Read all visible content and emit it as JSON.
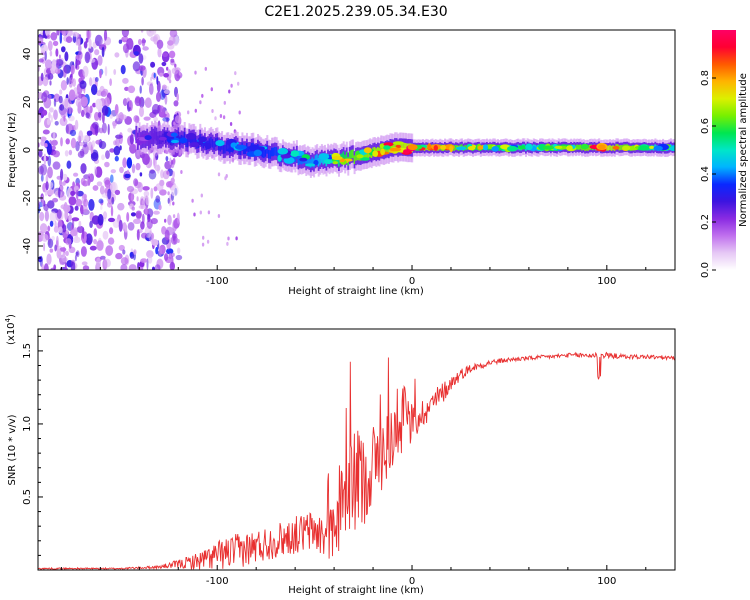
{
  "title": "C2E1.2025.239.05.34.E30",
  "colors": {
    "snr_line": "#e83030",
    "colormap": [
      "#ffffff",
      "#e6c8f5",
      "#c070ee",
      "#8a2be2",
      "#3c14e0",
      "#0a28ff",
      "#00b4ff",
      "#00e6c8",
      "#00e650",
      "#78f000",
      "#dcf000",
      "#ffb400",
      "#ff5a00",
      "#ff0032",
      "#ff0064"
    ]
  },
  "chart_data": [
    {
      "type": "heatmap",
      "title": "C2E1.2025.239.05.34.E30",
      "xlabel": "Height of straight line (km)",
      "ylabel": "Frequency (Hz)",
      "xlim": [
        -192,
        135
      ],
      "ylim": [
        -50,
        50
      ],
      "xticks": [
        -100,
        0,
        100
      ],
      "yticks": [
        -40,
        -20,
        0,
        20,
        40
      ],
      "colorbar": {
        "label": "Normalized spectral amplitude",
        "range": [
          0.0,
          1.0
        ],
        "ticks": [
          "0.0",
          "0.2",
          "0.4",
          "0.6",
          "0.8"
        ],
        "tick_values": [
          0.0,
          0.2,
          0.4,
          0.6,
          0.8
        ]
      },
      "ridge": {
        "description": "frequency center of energy ridge vs height",
        "x": [
          -140,
          -120,
          -100,
          -80,
          -60,
          -50,
          -40,
          -30,
          -20,
          -10,
          0,
          20,
          60,
          100,
          135
        ],
        "y": [
          5,
          5,
          2,
          0,
          -3,
          -5,
          -4,
          -3,
          -1,
          1,
          1,
          1,
          1,
          1,
          1
        ],
        "peak_amplitude": [
          0.3,
          0.45,
          0.45,
          0.5,
          0.55,
          0.6,
          0.75,
          0.9,
          0.95,
          0.95,
          1.0,
          0.9,
          0.7,
          1.0,
          0.6
        ]
      },
      "noise_region": {
        "x": [
          -192,
          -125
        ],
        "amplitude_range": [
          0.1,
          0.3
        ]
      }
    },
    {
      "type": "line",
      "xlabel": "Height of straight line (km)",
      "ylabel": "SNR (10 * v/v)",
      "multiplier_label": "(x10",
      "multiplier_exponent": "4",
      "multiplier_close": ")",
      "xlim": [
        -192,
        135
      ],
      "ylim": [
        0,
        1.65
      ],
      "xticks": [
        -100,
        0,
        100
      ],
      "yticks": [
        0.5,
        1.0,
        1.5
      ],
      "ytick_labels": [
        "0.5",
        "1.0",
        "1.5"
      ],
      "series": [
        {
          "name": "SNR",
          "x": [
            -192,
            -150,
            -130,
            -120,
            -110,
            -100,
            -90,
            -80,
            -70,
            -60,
            -50,
            -45,
            -40,
            -35,
            -30,
            -25,
            -20,
            -15,
            -10,
            -5,
            0,
            5,
            10,
            15,
            20,
            25,
            30,
            40,
            50,
            60,
            70,
            80,
            90,
            100,
            110,
            120,
            135
          ],
          "values": [
            0.01,
            0.01,
            0.02,
            0.04,
            0.06,
            0.1,
            0.13,
            0.16,
            0.2,
            0.24,
            0.27,
            0.22,
            0.28,
            0.45,
            0.6,
            0.62,
            0.72,
            0.8,
            0.92,
            0.98,
            1.0,
            1.07,
            1.13,
            1.2,
            1.28,
            1.34,
            1.38,
            1.42,
            1.44,
            1.45,
            1.46,
            1.47,
            1.47,
            1.47,
            1.46,
            1.46,
            1.45
          ],
          "noise_amplitude": [
            0.005,
            0.005,
            0.01,
            0.03,
            0.06,
            0.1,
            0.12,
            0.12,
            0.12,
            0.13,
            0.15,
            0.15,
            0.2,
            0.3,
            0.35,
            0.32,
            0.3,
            0.25,
            0.22,
            0.18,
            0.15,
            0.1,
            0.1,
            0.08,
            0.05,
            0.04,
            0.03,
            0.02,
            0.015,
            0.015,
            0.015,
            0.015,
            0.02,
            0.02,
            0.015,
            0.015,
            0.015
          ]
        }
      ]
    }
  ]
}
